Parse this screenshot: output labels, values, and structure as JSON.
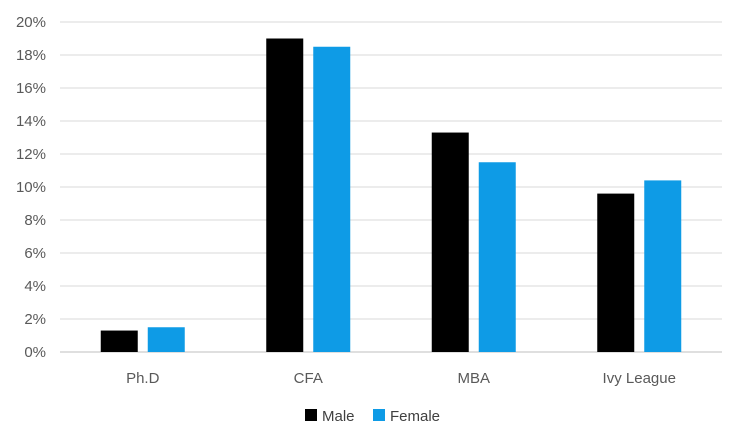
{
  "chart_data": {
    "type": "bar",
    "title": "",
    "xlabel": "",
    "ylabel": "",
    "categories": [
      "Ph.D",
      "CFA",
      "MBA",
      "Ivy League"
    ],
    "series": [
      {
        "name": "Male",
        "color": "#000000",
        "values": [
          1.3,
          19.0,
          13.3,
          9.6
        ]
      },
      {
        "name": "Female",
        "color": "#0E9BE6",
        "values": [
          1.5,
          18.5,
          11.5,
          10.4
        ]
      }
    ],
    "ylim": [
      0,
      20
    ],
    "yticks": [
      "0%",
      "2%",
      "4%",
      "6%",
      "8%",
      "10%",
      "12%",
      "14%",
      "16%",
      "18%",
      "20%"
    ],
    "grid": true,
    "legend_position": "bottom"
  }
}
